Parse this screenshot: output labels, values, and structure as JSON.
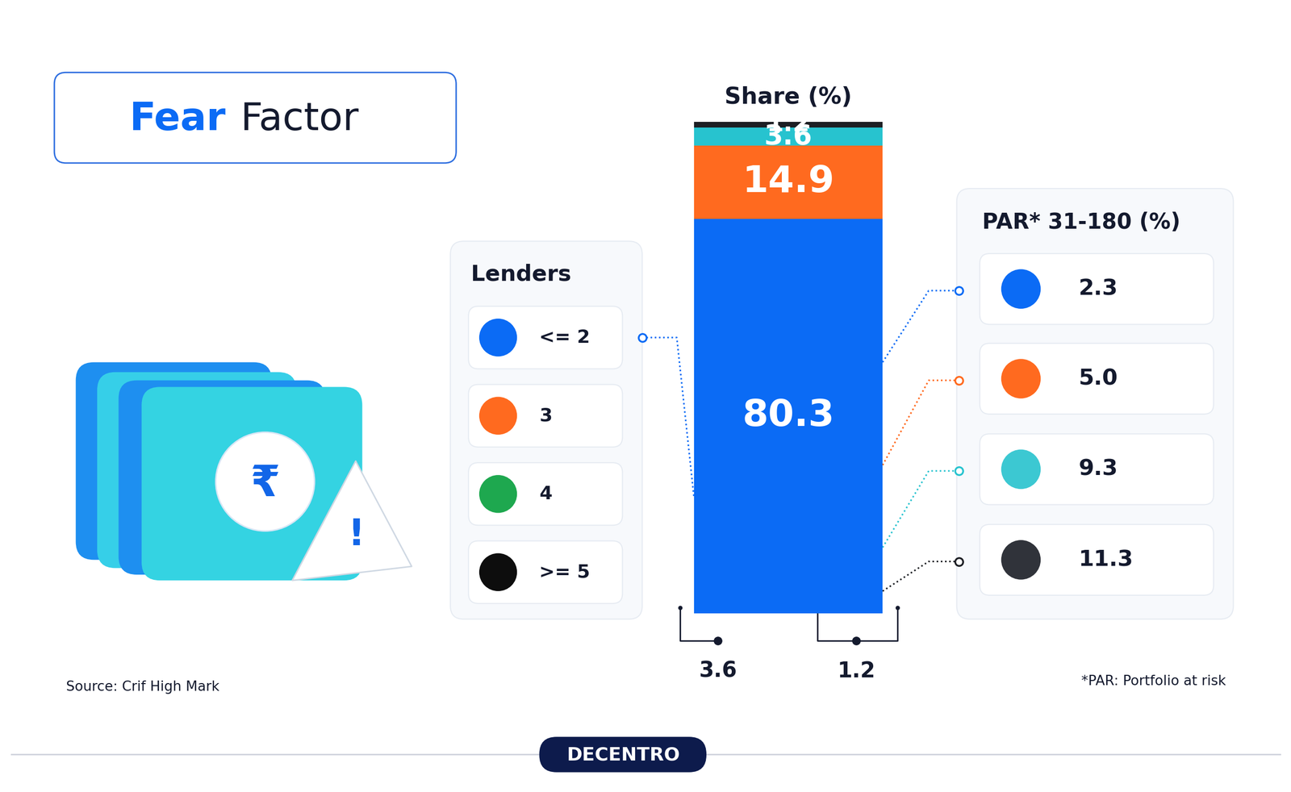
{
  "chart_data": {
    "type": "bar",
    "stacked": true,
    "data_labels": true,
    "tick_labels": false,
    "title": "Fear Factor",
    "ylabel": "Share (%)",
    "ylim": [
      0,
      100
    ],
    "series": [
      {
        "name": "<= 2",
        "color": "#0b6bf5",
        "values": [
          80.3
        ]
      },
      {
        "name": "3",
        "color": "#ff6a1f",
        "values": [
          14.9
        ]
      },
      {
        "name": "4",
        "color": "#27c3cf",
        "values": [
          3.6
        ]
      },
      {
        "name": ">= 5",
        "color": "#1d1f24",
        "values": [
          1.2
        ]
      }
    ],
    "lenders": {
      "title": "Lenders",
      "colors": [
        "#0b6bf5",
        "#ff6a1f",
        "#1ea84f",
        "#0d0d0d"
      ]
    },
    "par": {
      "title": "PAR* 31-180 (%)",
      "values": [
        2.3,
        5.0,
        9.3,
        11.3
      ],
      "colors": [
        "#0b6bf5",
        "#ff6a1f",
        "#3cc8d2",
        "#30333a"
      ]
    },
    "brackets": [
      3.6,
      1.2
    ],
    "source": "Source: Crif High Mark",
    "footnote": "*PAR: Portfolio at risk",
    "brand": "DECENTRO",
    "icon": {
      "currency": "₹",
      "alert": "!"
    }
  }
}
